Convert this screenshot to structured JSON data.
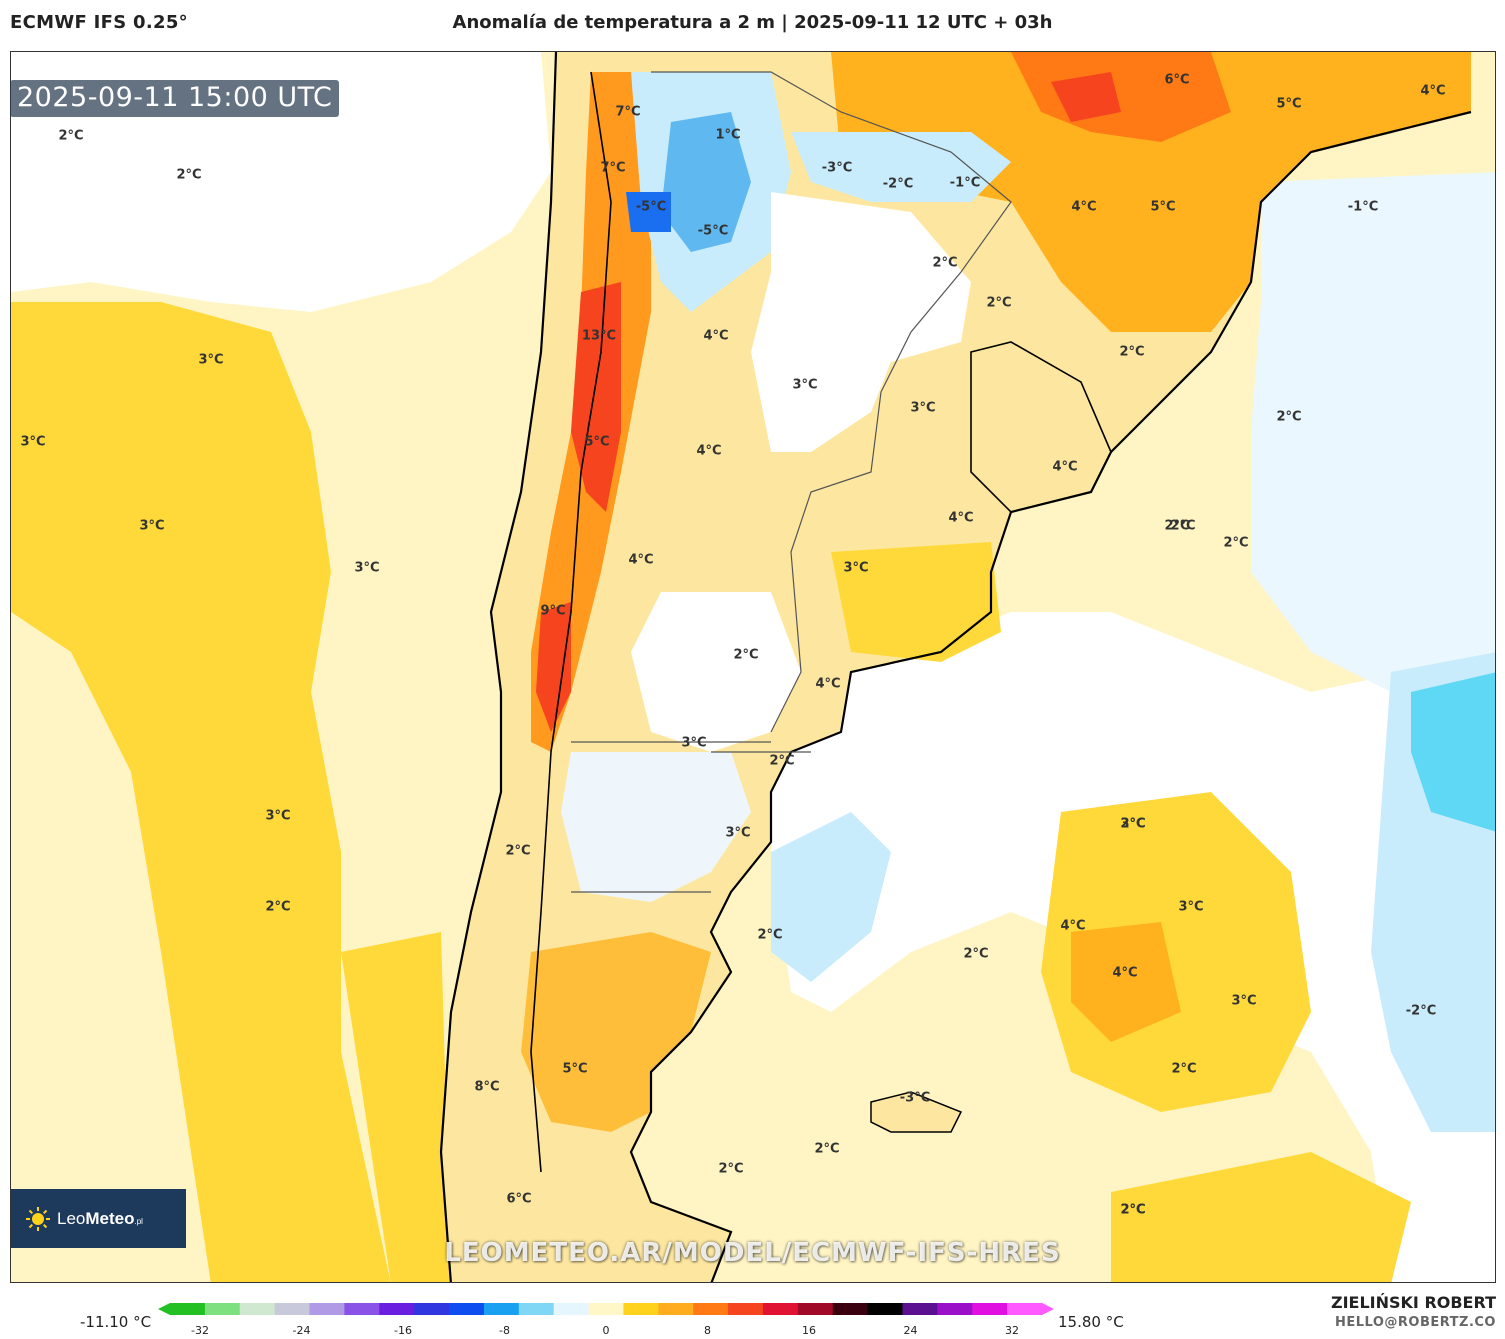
{
  "header": {
    "model": "ECMWF IFS 0.25°",
    "title": "Anomalía de temperatura a 2 m | 2025-09-11 12 UTC + 03h"
  },
  "valid_time": "2025-09-11 15:00 UTC",
  "logo": {
    "brand_light": "Leo",
    "brand_bold": "Meteo",
    "suffix": ".pl"
  },
  "watermark": "LEOMETEO.AR/MODEL/ECMWF-IFS-HRES",
  "map_labels": [
    {
      "text": "2°C"
    },
    {
      "text": "2°C"
    },
    {
      "text": "3°C"
    },
    {
      "text": "3°C"
    },
    {
      "text": "3°C"
    },
    {
      "text": "3°C"
    },
    {
      "text": "3°C"
    },
    {
      "text": "2°C"
    },
    {
      "text": "7°C"
    },
    {
      "text": "7°C"
    },
    {
      "text": "-5°C"
    },
    {
      "text": "-5°C"
    },
    {
      "text": "1°C"
    },
    {
      "text": "-3°C"
    },
    {
      "text": "-2°C"
    },
    {
      "text": "-1°C"
    },
    {
      "text": "13°C"
    },
    {
      "text": "4°C"
    },
    {
      "text": "3°C"
    },
    {
      "text": "5°C"
    },
    {
      "text": "4°C"
    },
    {
      "text": "4°C"
    },
    {
      "text": "9°C"
    },
    {
      "text": "2°C"
    },
    {
      "text": "3°C"
    },
    {
      "text": "2°C"
    },
    {
      "text": "3°C"
    },
    {
      "text": "2°C"
    },
    {
      "text": "5°C"
    },
    {
      "text": "8°C"
    },
    {
      "text": "6°C"
    },
    {
      "text": "4°C"
    },
    {
      "text": "3°C"
    },
    {
      "text": "2°C"
    },
    {
      "text": "2°C"
    },
    {
      "text": "3°C"
    },
    {
      "text": "4°C"
    },
    {
      "text": "4°C"
    },
    {
      "text": "4°C"
    },
    {
      "text": "2°C"
    },
    {
      "text": "2°C"
    },
    {
      "text": "2°C"
    },
    {
      "text": "6°C"
    },
    {
      "text": "5°C"
    },
    {
      "text": "4°C"
    },
    {
      "text": "5°C"
    },
    {
      "text": "-1°C"
    },
    {
      "text": "2°C"
    },
    {
      "text": "2°C"
    },
    {
      "text": "2°C"
    },
    {
      "text": "3°C"
    },
    {
      "text": "4°C"
    },
    {
      "text": "3°C"
    },
    {
      "text": "4°C"
    },
    {
      "text": "3°C"
    },
    {
      "text": "-2°C"
    },
    {
      "text": "2°C"
    },
    {
      "text": "2°C"
    },
    {
      "text": "2°C"
    },
    {
      "text": "2°C"
    },
    {
      "text": "-3°C"
    },
    {
      "text": "2°C"
    },
    {
      "text": "2°C"
    },
    {
      "text": "2°C"
    }
  ],
  "colorbar": {
    "min_label": "-11.10 °C",
    "max_label": "15.80 °C",
    "ticks": [
      "-32",
      "-24",
      "-16",
      "-8",
      "0",
      "8",
      "16",
      "24",
      "32"
    ],
    "colors": [
      "#22c022",
      "#7fe07f",
      "#cfe8cf",
      "#c9c9dc",
      "#b09ae6",
      "#8a52e6",
      "#6a1ee0",
      "#3036e0",
      "#0e4ef0",
      "#1aa0f0",
      "#7fd6f5",
      "#e6f6ff",
      "#fff7c8",
      "#ffd21e",
      "#ffac1e",
      "#ff7a14",
      "#f5441e",
      "#e01432",
      "#a00a28",
      "#3a0010",
      "#000000",
      "#5a1090",
      "#9a10c8",
      "#e010e0",
      "#ff5aff"
    ]
  },
  "author": "ZIELIŃSKI ROBERT",
  "email": "HELLO@ROBERTZ.CO"
}
